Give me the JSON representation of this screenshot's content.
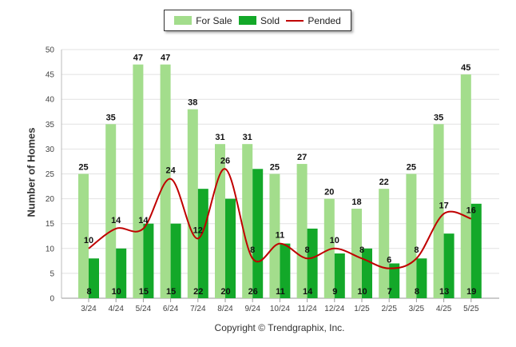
{
  "legend": {
    "items": [
      {
        "label": "For Sale",
        "color": "#a3dd8c",
        "kind": "bar"
      },
      {
        "label": "Sold",
        "color": "#13a829",
        "kind": "bar"
      },
      {
        "label": "Pended",
        "color": "#c00000",
        "kind": "line"
      }
    ]
  },
  "footer": {
    "copyright": "Copyright © Trendgraphix, Inc."
  },
  "chart_data": {
    "type": "bar",
    "title": "",
    "xlabel": "",
    "ylabel": "Number of Homes",
    "ylim": [
      0,
      50
    ],
    "yticks": [
      0,
      5,
      10,
      15,
      20,
      25,
      30,
      35,
      40,
      45,
      50
    ],
    "grid": true,
    "legend_position": "top",
    "categories": [
      "3/24",
      "4/24",
      "5/24",
      "6/24",
      "7/24",
      "8/24",
      "9/24",
      "10/24",
      "11/24",
      "12/24",
      "1/25",
      "2/25",
      "3/25",
      "4/25",
      "5/25"
    ],
    "series": [
      {
        "name": "For Sale",
        "type": "bar",
        "color": "#a3dd8c",
        "values": [
          25,
          35,
          47,
          47,
          38,
          31,
          31,
          25,
          27,
          20,
          18,
          22,
          25,
          35,
          45
        ]
      },
      {
        "name": "Sold",
        "type": "bar",
        "color": "#13a829",
        "values": [
          8,
          10,
          15,
          15,
          22,
          20,
          26,
          11,
          14,
          9,
          10,
          7,
          8,
          13,
          19
        ]
      },
      {
        "name": "Pended",
        "type": "line",
        "color": "#c00000",
        "values": [
          10,
          14,
          14,
          24,
          12,
          26,
          8,
          11,
          8,
          10,
          8,
          6,
          8,
          17,
          16
        ]
      }
    ]
  }
}
